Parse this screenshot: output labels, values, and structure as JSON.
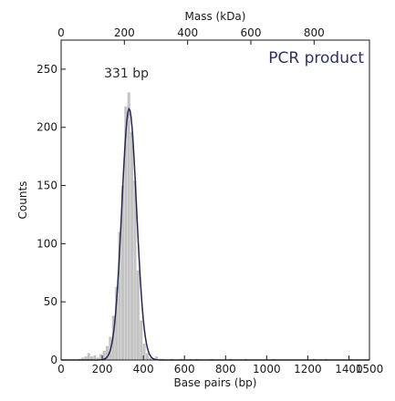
{
  "chart_data": {
    "type": "histogram",
    "title": "PCR product",
    "xlabel": "Base pairs (bp)",
    "ylabel": "Counts",
    "x2label": "Mass (kDa)",
    "xlim": [
      0,
      1500
    ],
    "ylim": [
      0,
      275
    ],
    "x_ticks": [
      0,
      200,
      400,
      600,
      800,
      1000,
      1200,
      1400,
      1500
    ],
    "y_ticks": [
      0,
      50,
      100,
      150,
      200,
      250
    ],
    "x2lim": [
      0,
      975
    ],
    "x2_ticks": [
      0,
      200,
      400,
      600,
      800
    ],
    "bin_width": 15,
    "bins": [
      {
        "x": 90,
        "count": 1
      },
      {
        "x": 105,
        "count": 2
      },
      {
        "x": 120,
        "count": 3
      },
      {
        "x": 135,
        "count": 6
      },
      {
        "x": 150,
        "count": 3
      },
      {
        "x": 165,
        "count": 4
      },
      {
        "x": 180,
        "count": 2
      },
      {
        "x": 195,
        "count": 5
      },
      {
        "x": 210,
        "count": 8
      },
      {
        "x": 225,
        "count": 12
      },
      {
        "x": 240,
        "count": 20
      },
      {
        "x": 255,
        "count": 38
      },
      {
        "x": 270,
        "count": 63
      },
      {
        "x": 285,
        "count": 110
      },
      {
        "x": 300,
        "count": 150
      },
      {
        "x": 315,
        "count": 218
      },
      {
        "x": 330,
        "count": 230
      },
      {
        "x": 345,
        "count": 196
      },
      {
        "x": 360,
        "count": 154
      },
      {
        "x": 375,
        "count": 77
      },
      {
        "x": 390,
        "count": 34
      },
      {
        "x": 405,
        "count": 14
      },
      {
        "x": 420,
        "count": 6
      },
      {
        "x": 435,
        "count": 2
      },
      {
        "x": 465,
        "count": 3
      },
      {
        "x": 480,
        "count": 1
      },
      {
        "x": 495,
        "count": 1
      },
      {
        "x": 540,
        "count": 1
      },
      {
        "x": 585,
        "count": 1
      },
      {
        "x": 630,
        "count": 1
      },
      {
        "x": 660,
        "count": 1
      },
      {
        "x": 735,
        "count": 1
      },
      {
        "x": 825,
        "count": 1
      },
      {
        "x": 900,
        "count": 1
      },
      {
        "x": 1035,
        "count": 1
      },
      {
        "x": 1230,
        "count": 1
      },
      {
        "x": 1290,
        "count": 1
      },
      {
        "x": 1410,
        "count": 1
      }
    ],
    "fit": {
      "type": "gaussian",
      "center": 331,
      "sigma": 36,
      "amplitude": 216
    },
    "annotations": [
      {
        "text": "331 bp",
        "x": 331,
        "y": 243
      }
    ],
    "colors": {
      "bars": "#c3c3c3",
      "fit": "#262650",
      "title": "#2e3160",
      "axis": "#1a1a1a"
    },
    "grid": false,
    "legend": "none"
  }
}
